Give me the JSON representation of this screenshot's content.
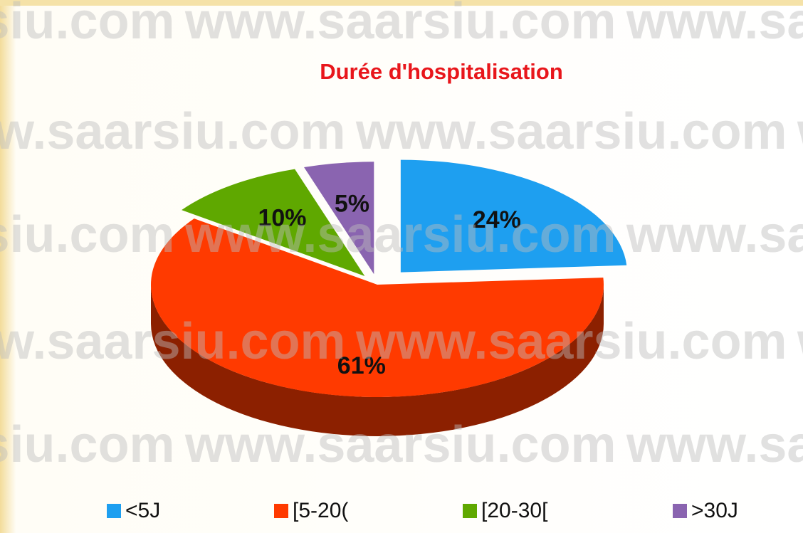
{
  "chart_data": {
    "type": "pie",
    "title": "Durée d'hospitalisation",
    "categories": [
      "<5J",
      "[5-20(",
      "[20-30[",
      ">30J"
    ],
    "values": [
      24,
      61,
      10,
      5
    ],
    "value_labels": [
      "24%",
      "61%",
      "10%",
      "5%"
    ],
    "colors": [
      "#1e9ff0",
      "#ff3a00",
      "#5fa800",
      "#8a64b0"
    ],
    "legend": "bottom",
    "watermark": "www.saarsiu.com"
  }
}
